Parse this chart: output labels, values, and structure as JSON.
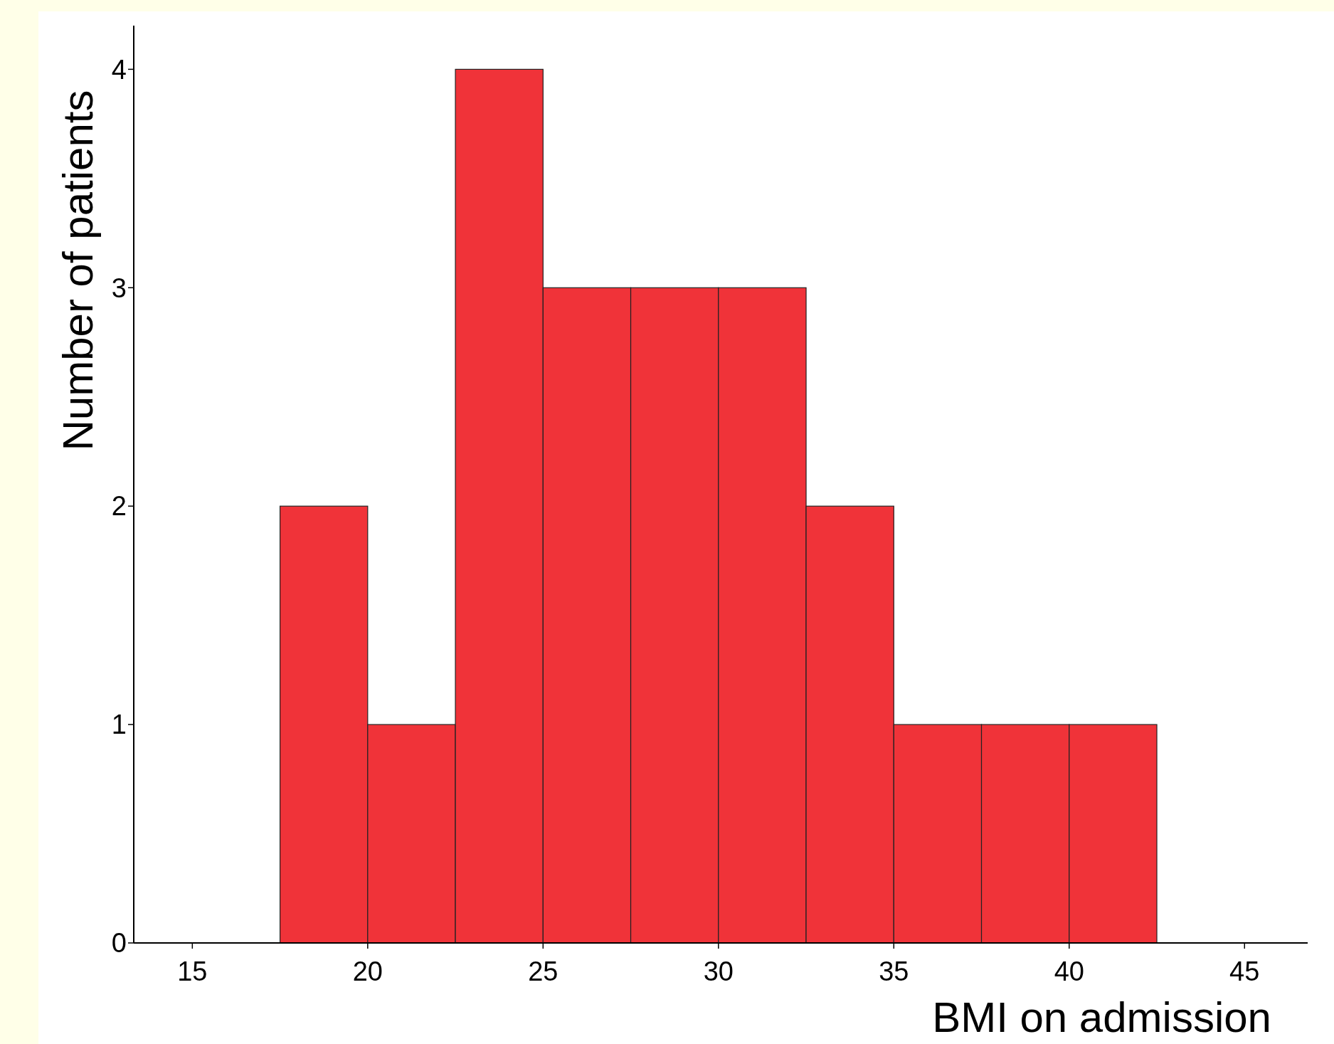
{
  "chart_data": {
    "type": "histogram",
    "xlabel": "BMI on admission",
    "ylabel": "Number of patients",
    "bins": [
      17.5,
      20,
      22.5,
      25,
      27.5,
      30,
      32.5,
      35,
      37.5,
      40,
      42.5
    ],
    "values": [
      2,
      1,
      4,
      3,
      3,
      3,
      2,
      1,
      1,
      1
    ],
    "color": "#f03339",
    "xlim": [
      13.33,
      46.8
    ],
    "xticks": [
      15,
      20,
      25,
      30,
      35,
      40,
      45
    ],
    "ylim": [
      0,
      4.2
    ],
    "yticks": [
      0,
      1,
      2,
      3,
      4
    ],
    "grid": false
  }
}
